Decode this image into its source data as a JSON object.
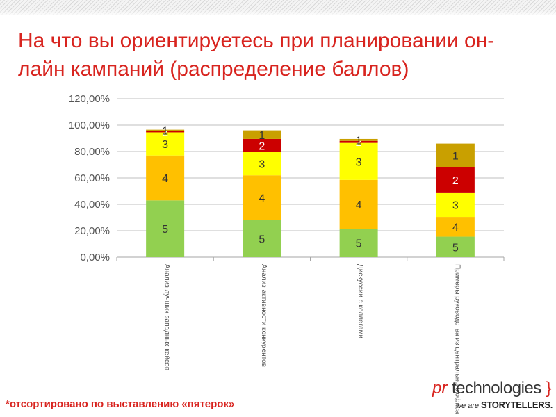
{
  "slide": {
    "title": "На что вы ориентируетесь при планировании он-лайн кампаний (распределение баллов)",
    "footnote": "*отсортировано по выставлению «пятерок»"
  },
  "logo": {
    "line1_pr": "pr",
    "line1_rest": "technologies",
    "line1_brace": "}",
    "line2_we_are": "we are",
    "line2_storytellers": "STORYTELLERS."
  },
  "colors": {
    "title": "#d8241f",
    "seg_5": "#92d050",
    "seg_4": "#ffc000",
    "seg_3": "#ffff00",
    "seg_2": "#cc0000",
    "seg_1": "#c9a000"
  },
  "chart_data": {
    "type": "bar",
    "stacked": true,
    "categories": [
      "Анализ лучших западных кейсов",
      "Анализ активности конкурентов",
      "Дискуссии с коллегами",
      "Примеры руководства из центрального офиса"
    ],
    "series": [
      {
        "label": "5",
        "values": [
          43,
          28,
          21.5,
          15.5
        ]
      },
      {
        "label": "4",
        "values": [
          34,
          34,
          37,
          15
        ]
      },
      {
        "label": "3",
        "values": [
          17.5,
          17.5,
          28,
          18.5
        ]
      },
      {
        "label": "2",
        "values": [
          1,
          10,
          1.5,
          19
        ]
      },
      {
        "label": "1",
        "values": [
          1,
          6.5,
          1.5,
          18
        ]
      }
    ],
    "y_ticks": [
      "0,00%",
      "20,00%",
      "40,00%",
      "60,00%",
      "80,00%",
      "100,00%",
      "120,00%"
    ],
    "ylim": [
      0,
      120
    ],
    "grid": true,
    "legend": "none"
  }
}
